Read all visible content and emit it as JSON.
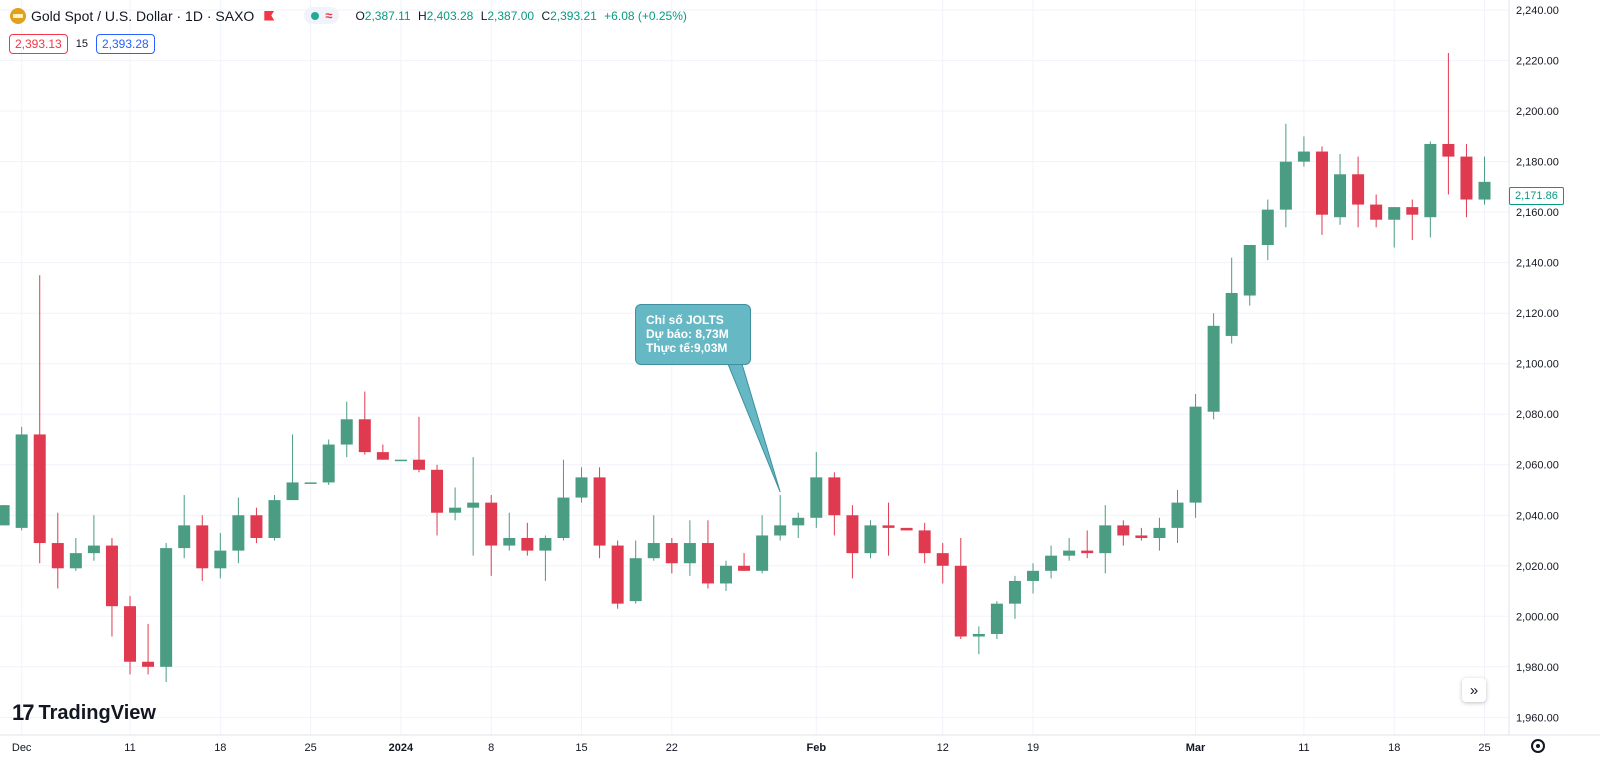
{
  "header": {
    "symbol_title": "Gold Spot / U.S. Dollar · 1D · SAXO",
    "open_key": "O",
    "open_val": "2,387.11",
    "high_key": "H",
    "high_val": "2,403.28",
    "low_key": "L",
    "low_val": "2,387.00",
    "close_key": "C",
    "close_val": "2,393.21",
    "change_val": "+6.08 (+0.25%)",
    "pill_wave": "≈"
  },
  "trade": {
    "sell": "2,393.13",
    "qty": "15",
    "buy": "2,393.28"
  },
  "price_label": "2,171.86",
  "annotation": {
    "title": "Chỉ số JOLTS",
    "forecast": "Dự báo: 8,73M",
    "actual": "Thực tế:9,03M"
  },
  "branding": {
    "mark": "17",
    "name": "TradingView"
  },
  "colors": {
    "up": "#4a9c82",
    "down": "#e03a50",
    "grid": "#f0f3fa",
    "accent": "#089981"
  },
  "icons": {
    "symbol": "gold-coin-icon",
    "scroll": "double-chevron-right-icon",
    "settings": "gear-icon"
  },
  "chart_data": {
    "type": "candlestick",
    "y_ticks": [
      "2,240.00",
      "2,220.00",
      "2,200.00",
      "2,180.00",
      "2,160.00",
      "2,140.00",
      "2,120.00",
      "2,100.00",
      "2,080.00",
      "2,060.00",
      "2,040.00",
      "2,020.00",
      "2,000.00",
      "1,980.00",
      "1,960.00"
    ],
    "y_tick_values": [
      2240,
      2220,
      2200,
      2180,
      2160,
      2140,
      2120,
      2100,
      2080,
      2060,
      2040,
      2020,
      2000,
      1980,
      1960
    ],
    "x_ticks": [
      {
        "label": "Dec",
        "i": 1
      },
      {
        "label": "11",
        "i": 7
      },
      {
        "label": "18",
        "i": 12
      },
      {
        "label": "25",
        "i": 17
      },
      {
        "label": "2024",
        "i": 22
      },
      {
        "label": "8",
        "i": 27
      },
      {
        "label": "15",
        "i": 32
      },
      {
        "label": "22",
        "i": 37
      },
      {
        "label": "Feb",
        "i": 45
      },
      {
        "label": "12",
        "i": 52
      },
      {
        "label": "19",
        "i": 57
      },
      {
        "label": "Mar",
        "i": 66
      },
      {
        "label": "11",
        "i": 72
      },
      {
        "label": "18",
        "i": 77
      },
      {
        "label": "25",
        "i": 82
      }
    ],
    "x_tick_bold": [
      "2024",
      "Feb",
      "Mar"
    ],
    "ylim": [
      1953,
      2244
    ],
    "annotation_index": 43,
    "candles": [
      [
        2036,
        2044,
        2036,
        2044
      ],
      [
        2035,
        2075,
        2034,
        2072
      ],
      [
        2072,
        2135,
        2021,
        2029
      ],
      [
        2029,
        2041,
        2011,
        2019
      ],
      [
        2019,
        2031,
        2018,
        2025
      ],
      [
        2025,
        2040,
        2022,
        2028
      ],
      [
        2028,
        2031,
        1992,
        2004
      ],
      [
        2004,
        2008,
        1977,
        1982
      ],
      [
        1982,
        1997,
        1977,
        1980
      ],
      [
        1980,
        2029,
        1974,
        2027
      ],
      [
        2027,
        2048,
        2023,
        2036
      ],
      [
        2036,
        2040,
        2014,
        2019
      ],
      [
        2019,
        2033,
        2015,
        2026
      ],
      [
        2026,
        2047,
        2021,
        2040
      ],
      [
        2040,
        2043,
        2029,
        2031
      ],
      [
        2031,
        2048,
        2030,
        2046
      ],
      [
        2046,
        2072,
        2046,
        2053
      ],
      [
        2053,
        2053,
        2053,
        2053
      ],
      [
        2053,
        2070,
        2052,
        2068
      ],
      [
        2068,
        2085,
        2063,
        2078
      ],
      [
        2078,
        2089,
        2064,
        2065
      ],
      [
        2065,
        2068,
        2062,
        2062
      ],
      [
        2062,
        2062,
        2062,
        2062
      ],
      [
        2062,
        2079,
        2057,
        2058
      ],
      [
        2058,
        2060,
        2032,
        2041
      ],
      [
        2041,
        2051,
        2038,
        2043
      ],
      [
        2043,
        2063,
        2024,
        2045
      ],
      [
        2045,
        2048,
        2016,
        2028
      ],
      [
        2028,
        2041,
        2026,
        2031
      ],
      [
        2031,
        2037,
        2024,
        2026
      ],
      [
        2026,
        2032,
        2014,
        2031
      ],
      [
        2031,
        2062,
        2030,
        2047
      ],
      [
        2047,
        2059,
        2045,
        2055
      ],
      [
        2055,
        2059,
        2023,
        2028
      ],
      [
        2028,
        2030,
        2003,
        2005
      ],
      [
        2006,
        2030,
        2005,
        2023
      ],
      [
        2023,
        2040,
        2022,
        2029
      ],
      [
        2029,
        2031,
        2017,
        2021
      ],
      [
        2021,
        2038,
        2016,
        2029
      ],
      [
        2029,
        2038,
        2011,
        2013
      ],
      [
        2013,
        2022,
        2010,
        2020
      ],
      [
        2020,
        2025,
        2018,
        2018
      ],
      [
        2018,
        2040,
        2017,
        2032
      ],
      [
        2032,
        2048,
        2030,
        2036
      ],
      [
        2036,
        2041,
        2031,
        2039
      ],
      [
        2039,
        2065,
        2035,
        2055
      ],
      [
        2055,
        2057,
        2032,
        2040
      ],
      [
        2040,
        2044,
        2015,
        2025
      ],
      [
        2025,
        2038,
        2023,
        2036
      ],
      [
        2036,
        2045,
        2024,
        2035
      ],
      [
        2035,
        2035,
        2034,
        2034
      ],
      [
        2034,
        2037,
        2021,
        2025
      ],
      [
        2025,
        2029,
        2013,
        2020
      ],
      [
        2020,
        2031,
        1991,
        1992
      ],
      [
        1992,
        1996,
        1985,
        1993
      ],
      [
        1993,
        2006,
        1991,
        2005
      ],
      [
        2005,
        2016,
        1999,
        2014
      ],
      [
        2014,
        2021,
        2009,
        2018
      ],
      [
        2018,
        2028,
        2015,
        2024
      ],
      [
        2024,
        2031,
        2022,
        2026
      ],
      [
        2026,
        2034,
        2023,
        2025
      ],
      [
        2025,
        2044,
        2017,
        2036
      ],
      [
        2036,
        2038,
        2028,
        2032
      ],
      [
        2032,
        2035,
        2030,
        2031
      ],
      [
        2031,
        2039,
        2026,
        2035
      ],
      [
        2035,
        2050,
        2029,
        2045
      ],
      [
        2045,
        2088,
        2039,
        2083
      ],
      [
        2081,
        2120,
        2078,
        2115
      ],
      [
        2111,
        2142,
        2108,
        2128
      ],
      [
        2127,
        2146,
        2123,
        2147
      ],
      [
        2147,
        2165,
        2141,
        2161
      ],
      [
        2161,
        2195,
        2154,
        2180
      ],
      [
        2180,
        2190,
        2178,
        2184
      ],
      [
        2184,
        2186,
        2151,
        2159
      ],
      [
        2158,
        2183,
        2155,
        2175
      ],
      [
        2175,
        2182,
        2154,
        2163
      ],
      [
        2163,
        2167,
        2154,
        2157
      ],
      [
        2157,
        2161,
        2146,
        2162
      ],
      [
        2162,
        2165,
        2149,
        2159
      ],
      [
        2158,
        2188,
        2150,
        2187
      ],
      [
        2187,
        2223,
        2167,
        2182
      ],
      [
        2182,
        2187,
        2158,
        2165
      ],
      [
        2165,
        2182,
        2163,
        2172
      ]
    ]
  }
}
